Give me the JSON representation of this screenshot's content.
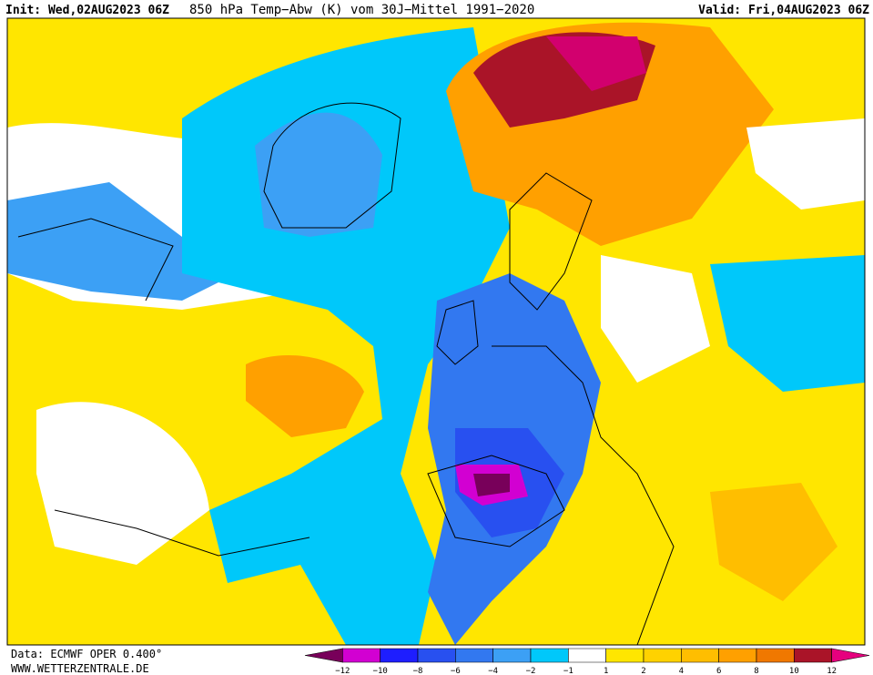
{
  "header": {
    "init": "Init: Wed,02AUG2023 06Z",
    "title": "850 hPa Temp−Abw (K) vom 30J−Mittel 1991−2020",
    "valid": "Valid: Fri,04AUG2023 06Z"
  },
  "footer": {
    "source": "Data: ECMWF OPER 0.400°",
    "site": "WWW.WETTERZENTRALE.DE"
  },
  "colorbar": {
    "colors": [
      "#78005a",
      "#d200d2",
      "#1e1eff",
      "#2850f0",
      "#3278f0",
      "#3ca0f5",
      "#00c8fa",
      "#ffffff",
      "#ffe600",
      "#ffd200",
      "#ffbe00",
      "#ffa000",
      "#f07800",
      "#aa1428",
      "#e6007e"
    ],
    "labels": [
      "−12",
      "−10",
      "−8",
      "−6",
      "−4",
      "−2",
      "−1",
      "1",
      "2",
      "4",
      "6",
      "8",
      "10",
      "12"
    ]
  }
}
